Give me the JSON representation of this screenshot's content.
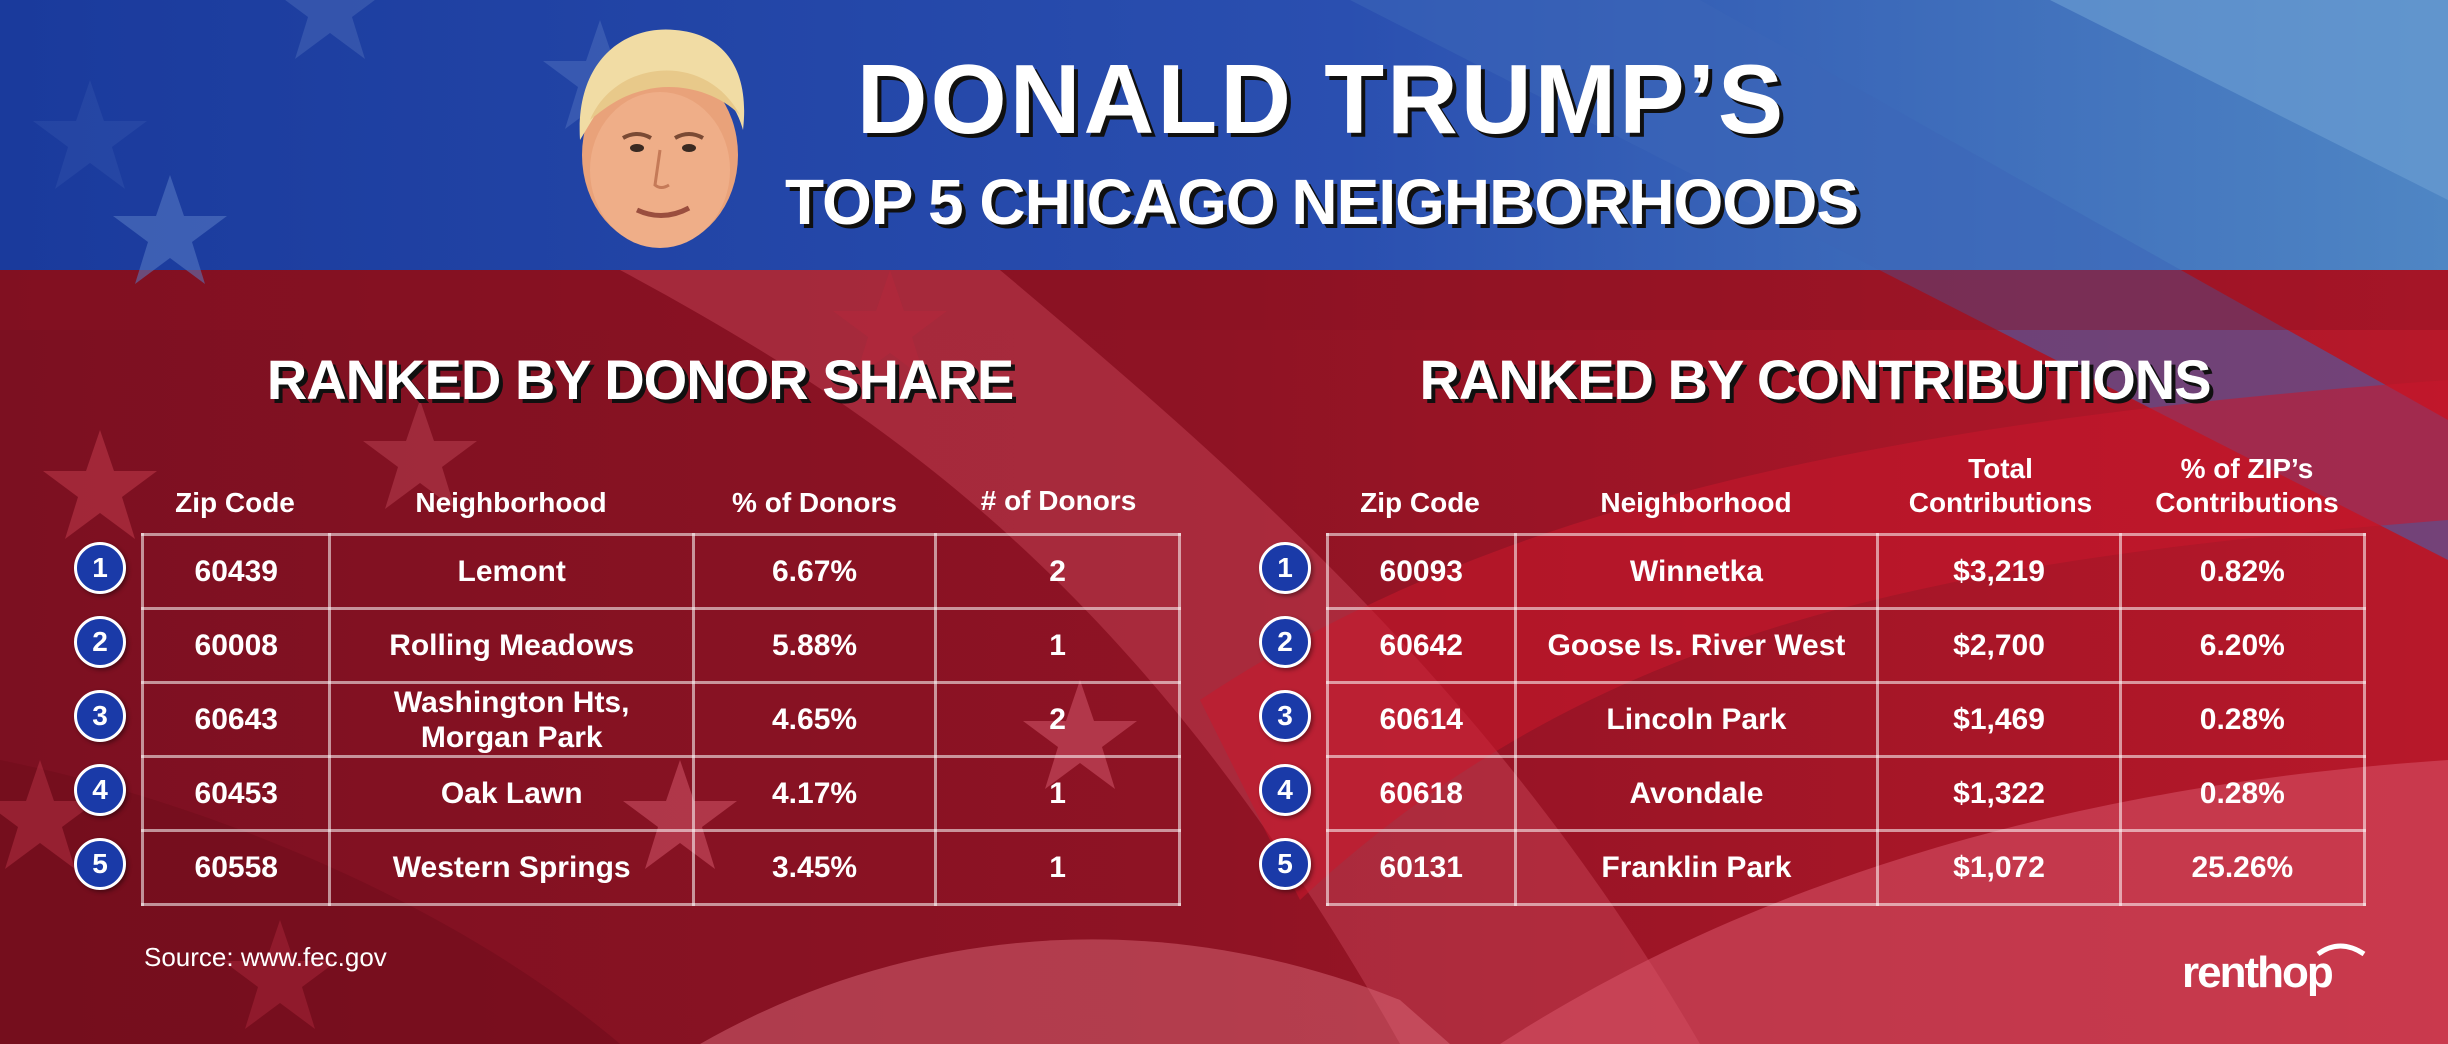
{
  "header": {
    "title": "DONALD TRUMP’S",
    "subtitle": "TOP 5 CHICAGO NEIGHBORHOODS"
  },
  "colors": {
    "blue": "#1c3c9c",
    "red": "#a81426",
    "light_red": "#d9566a",
    "rank_badge": "#1a3aa8"
  },
  "left_table": {
    "title": "RANKED BY DONOR SHARE",
    "headers": [
      "Zip Code",
      "Neighborhood",
      "% of Donors",
      "# of Donors"
    ],
    "rows": [
      {
        "rank": "1",
        "zip": "60439",
        "neighborhood": "Lemont",
        "c3": "6.67%",
        "c4": "2"
      },
      {
        "rank": "2",
        "zip": "60008",
        "neighborhood": "Rolling Meadows",
        "c3": "5.88%",
        "c4": "1"
      },
      {
        "rank": "3",
        "zip": "60643",
        "neighborhood": "Washington Hts, Morgan Park",
        "c3": "4.65%",
        "c4": "2"
      },
      {
        "rank": "4",
        "zip": "60453",
        "neighborhood": "Oak Lawn",
        "c3": "4.17%",
        "c4": "1"
      },
      {
        "rank": "5",
        "zip": "60558",
        "neighborhood": "Western Springs",
        "c3": "3.45%",
        "c4": "1"
      }
    ]
  },
  "right_table": {
    "title": "RANKED BY CONTRIBUTIONS",
    "headers": [
      "Zip Code",
      "Neighborhood",
      "Total Contributions",
      "% of ZIP’s Contributions"
    ],
    "rows": [
      {
        "rank": "1",
        "zip": "60093",
        "neighborhood": "Winnetka",
        "c3": "$3,219",
        "c4": "0.82%"
      },
      {
        "rank": "2",
        "zip": "60642",
        "neighborhood": "Goose Is. River West",
        "c3": "$2,700",
        "c4": "6.20%"
      },
      {
        "rank": "3",
        "zip": "60614",
        "neighborhood": "Lincoln Park",
        "c3": "$1,469",
        "c4": "0.28%"
      },
      {
        "rank": "4",
        "zip": "60618",
        "neighborhood": "Avondale",
        "c3": "$1,322",
        "c4": "0.28%"
      },
      {
        "rank": "5",
        "zip": "60131",
        "neighborhood": "Franklin Park",
        "c3": "$1,072",
        "c4": "25.26%"
      }
    ]
  },
  "footer": {
    "source": "Source: www.fec.gov",
    "logo_text": "renthop"
  }
}
